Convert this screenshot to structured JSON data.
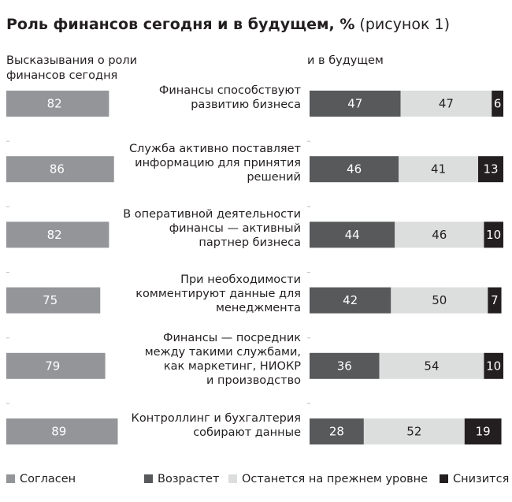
{
  "title": {
    "bold": "Роль финансов сегодня и в будущем, %",
    "light": "(рисунок 1)"
  },
  "colors": {
    "agree": "#939598",
    "grow": "#58595b",
    "same": "#dcdddd",
    "decline": "#231f20",
    "divider": "#bcbec0"
  },
  "chart_data": [
    {
      "type": "bar",
      "orientation": "horizontal",
      "title": "Высказывания о роли финансов сегодня",
      "categories": [
        "Финансы способствуют развитию бизнеса",
        "Служба активно поставляет информацию для принятия решений",
        "В оперативной деятельности финансы — активный партнер бизнеса",
        "При необходимости комментируют данные для менеджмента",
        "Финансы — посредник между такими службами, как маркетинг, НИОКР и производство",
        "Контроллинг и бухгалтерия собирают данные"
      ],
      "series": [
        {
          "name": "Согласен",
          "values": [
            82,
            86,
            82,
            75,
            79,
            89
          ]
        }
      ],
      "xlim": [
        0,
        100
      ]
    },
    {
      "type": "bar",
      "orientation": "horizontal",
      "stacked": true,
      "title": "и в будущем",
      "categories": [
        "Финансы способствуют развитию бизнеса",
        "Служба активно поставляет информацию для принятия решений",
        "В оперативной деятельности финансы — активный партнер бизнеса",
        "При необходимости комментируют данные для менеджмента",
        "Финансы — посредник между такими службами, как маркетинг, НИОКР и производство",
        "Контроллинг и бухгалтерия собирают данные"
      ],
      "series": [
        {
          "name": "Возрастет",
          "values": [
            47,
            46,
            44,
            42,
            36,
            28
          ]
        },
        {
          "name": "Останется на прежнем уровне",
          "values": [
            47,
            41,
            46,
            50,
            54,
            52
          ]
        },
        {
          "name": "Снизится",
          "values": [
            6,
            13,
            10,
            7,
            10,
            19
          ]
        }
      ],
      "xlim": [
        0,
        100
      ]
    }
  ],
  "statements": [
    [
      "Финансы способствуют",
      "развитию бизнеса"
    ],
    [
      "Служба активно поставляет",
      "информацию для принятия",
      "решений"
    ],
    [
      "В оперативной деятельности",
      "финансы — активный",
      "партнер бизнеса"
    ],
    [
      "При необходимости",
      "комментируют данные для",
      "менеджмента"
    ],
    [
      "Финансы — посредник",
      "между такими службами,",
      "как маркетинг, НИОКР",
      "и производство"
    ],
    [
      "Контроллинг и бухгалтерия",
      "собирают данные"
    ]
  ],
  "left_header": [
    "Высказывания о роли",
    "финансов сегодня"
  ],
  "right_header": "и в будущем",
  "legend": [
    {
      "label": "Согласен",
      "color_key": "agree"
    },
    {
      "label": "Возрастет",
      "color_key": "grow"
    },
    {
      "label": "Останется на прежнем уровне",
      "color_key": "same"
    },
    {
      "label": "Снизится",
      "color_key": "decline"
    }
  ]
}
